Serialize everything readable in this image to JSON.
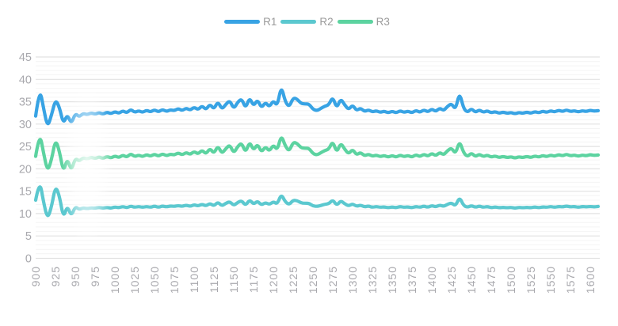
{
  "legend": {
    "items": [
      {
        "label": "R1",
        "color": "#38a3e4"
      },
      {
        "label": "R2",
        "color": "#5bc8cf"
      },
      {
        "label": "R3",
        "color": "#5cd3a0"
      }
    ]
  },
  "axes": {
    "y_ticks": [
      "45",
      "40",
      "35",
      "30",
      "25",
      "20",
      "15",
      "10",
      "5",
      "0"
    ],
    "x_ticks": [
      "900",
      "925",
      "950",
      "975",
      "1000",
      "1025",
      "1050",
      "1075",
      "1100",
      "1125",
      "1150",
      "1175",
      "1200",
      "1225",
      "1250",
      "1275",
      "1300",
      "1325",
      "1350",
      "1375",
      "1400",
      "1425",
      "1450",
      "1475",
      "1500",
      "1525",
      "1550",
      "1575",
      "1600"
    ],
    "tick_color": "#a8a8ad",
    "grid_major_color": "#e2e2e2",
    "grid_minor_color": "#f4f4f4"
  },
  "chart_data": {
    "type": "line",
    "title": "",
    "xlabel": "",
    "ylabel": "",
    "legend_position": "top",
    "grid": "horizontal-only",
    "xlim": [
      900,
      1612
    ],
    "ylim": [
      0,
      45
    ],
    "x_tick_step": 25,
    "y_major_step": 5,
    "y_minor_step": 1,
    "x_start": 900,
    "x_step": 5,
    "series": [
      {
        "name": "R1",
        "color": "#38a3e4",
        "values": [
          31.8,
          38.2,
          33.5,
          29.3,
          32.0,
          35.5,
          33.8,
          30.0,
          32.2,
          30.0,
          32.4,
          31.6,
          32.4,
          32.1,
          32.5,
          32.2,
          32.6,
          32.2,
          32.7,
          32.3,
          32.8,
          32.4,
          33.0,
          32.5,
          33.3,
          32.6,
          33.0,
          32.6,
          33.1,
          32.7,
          33.2,
          32.7,
          33.3,
          32.8,
          33.2,
          33.0,
          33.5,
          33.0,
          33.6,
          33.1,
          33.8,
          33.2,
          34.1,
          33.2,
          34.5,
          33.3,
          35.1,
          33.3,
          34.4,
          35.3,
          33.4,
          34.9,
          35.7,
          33.5,
          36.0,
          34.0,
          35.5,
          33.6,
          34.9,
          33.8,
          35.3,
          34.0,
          38.6,
          35.0,
          33.8,
          35.9,
          35.6,
          34.6,
          34.5,
          34.5,
          33.3,
          33.0,
          33.5,
          34.0,
          34.3,
          36.1,
          33.5,
          35.7,
          34.3,
          33.2,
          34.3,
          33.0,
          33.6,
          32.8,
          33.2,
          32.7,
          33.0,
          32.6,
          32.9,
          32.5,
          32.9,
          32.5,
          33.0,
          32.6,
          32.9,
          32.5,
          33.1,
          32.6,
          33.2,
          32.7,
          33.4,
          32.8,
          33.6,
          33.0,
          34.0,
          34.6,
          33.2,
          37.2,
          33.5,
          32.6,
          33.5,
          32.6,
          33.2,
          32.6,
          33.0,
          32.5,
          32.8,
          32.4,
          32.7,
          32.4,
          32.6,
          32.3,
          32.6,
          32.4,
          32.7,
          32.4,
          32.8,
          32.5,
          32.9,
          32.6,
          33.0,
          32.7,
          33.1,
          32.8,
          33.2,
          32.8,
          33.0,
          32.7,
          33.0,
          32.8,
          33.1,
          32.9,
          33.0
        ]
      },
      {
        "name": "R2",
        "color": "#5bc8cf",
        "values": [
          13.0,
          17.6,
          12.5,
          8.8,
          11.5,
          16.2,
          14.0,
          9.0,
          11.8,
          9.4,
          11.6,
          10.9,
          11.3,
          11.1,
          11.3,
          11.2,
          11.4,
          11.2,
          11.4,
          11.2,
          11.5,
          11.3,
          11.6,
          11.3,
          11.7,
          11.4,
          11.6,
          11.4,
          11.6,
          11.4,
          11.7,
          11.4,
          11.7,
          11.5,
          11.7,
          11.6,
          11.8,
          11.6,
          11.9,
          11.6,
          12.0,
          11.7,
          12.1,
          11.7,
          12.3,
          11.7,
          12.6,
          11.7,
          12.3,
          12.7,
          11.8,
          12.5,
          12.9,
          11.8,
          13.1,
          12.1,
          12.8,
          11.9,
          12.5,
          12.0,
          12.7,
          12.1,
          14.4,
          12.6,
          12.0,
          13.0,
          12.9,
          12.4,
          12.3,
          12.3,
          11.7,
          11.6,
          11.8,
          12.1,
          12.2,
          13.1,
          11.8,
          12.9,
          12.2,
          11.7,
          12.2,
          11.6,
          11.9,
          11.5,
          11.7,
          11.4,
          11.6,
          11.4,
          11.5,
          11.3,
          11.5,
          11.3,
          11.6,
          11.4,
          11.5,
          11.3,
          11.6,
          11.4,
          11.7,
          11.4,
          11.8,
          11.5,
          11.9,
          11.6,
          12.1,
          12.4,
          11.7,
          13.7,
          11.8,
          11.4,
          11.8,
          11.4,
          11.7,
          11.4,
          11.6,
          11.3,
          11.5,
          11.3,
          11.4,
          11.3,
          11.4,
          11.2,
          11.4,
          11.3,
          11.4,
          11.3,
          11.5,
          11.3,
          11.5,
          11.4,
          11.6,
          11.4,
          11.6,
          11.5,
          11.7,
          11.5,
          11.6,
          11.4,
          11.6,
          11.5,
          11.6,
          11.5,
          11.6
        ]
      },
      {
        "name": "R3",
        "color": "#5cd3a0",
        "values": [
          22.8,
          28.2,
          23.5,
          19.4,
          22.0,
          26.6,
          24.0,
          19.2,
          22.4,
          19.5,
          22.4,
          21.7,
          22.5,
          22.2,
          22.6,
          22.3,
          22.7,
          22.3,
          22.8,
          22.4,
          22.9,
          22.5,
          23.1,
          22.6,
          23.4,
          22.7,
          23.1,
          22.7,
          23.2,
          22.8,
          23.3,
          22.8,
          23.4,
          22.9,
          23.3,
          23.1,
          23.6,
          23.1,
          23.7,
          23.2,
          23.9,
          23.3,
          24.2,
          23.3,
          24.6,
          23.4,
          25.2,
          23.4,
          24.5,
          25.4,
          23.5,
          25.0,
          25.8,
          23.6,
          26.1,
          24.1,
          25.6,
          23.7,
          25.0,
          23.9,
          25.4,
          24.1,
          27.6,
          25.1,
          23.9,
          26.0,
          25.7,
          24.7,
          24.6,
          24.6,
          23.4,
          23.1,
          23.6,
          24.1,
          24.4,
          26.2,
          23.6,
          25.8,
          24.4,
          23.3,
          24.4,
          23.1,
          23.7,
          22.9,
          23.3,
          22.8,
          23.1,
          22.7,
          23.0,
          22.6,
          23.0,
          22.6,
          23.1,
          22.7,
          23.0,
          22.6,
          23.2,
          22.7,
          23.3,
          22.8,
          23.5,
          22.9,
          23.7,
          23.1,
          24.1,
          24.7,
          23.3,
          26.3,
          23.6,
          22.7,
          23.6,
          22.7,
          23.3,
          22.7,
          23.1,
          22.6,
          22.9,
          22.5,
          22.8,
          22.5,
          22.7,
          22.4,
          22.7,
          22.5,
          22.8,
          22.5,
          22.9,
          22.6,
          23.0,
          22.7,
          23.1,
          22.8,
          23.2,
          22.9,
          23.3,
          22.9,
          23.1,
          22.8,
          23.1,
          22.9,
          23.2,
          23.0,
          23.1
        ]
      }
    ]
  }
}
